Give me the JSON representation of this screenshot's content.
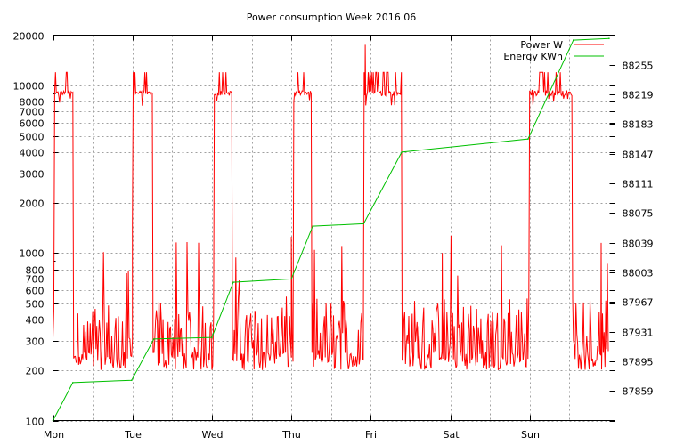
{
  "chart_data": {
    "type": "line",
    "title": "Power consumption Week 2016 06",
    "xlabel": "",
    "ylabel": "",
    "x_categories": [
      "Mon",
      "Tue",
      "Wed",
      "Thu",
      "Fri",
      "Sat",
      "Sun"
    ],
    "x_range_days": [
      0,
      7
    ],
    "y_left": {
      "scale": "log",
      "range": [
        100,
        20000
      ],
      "ticks": [
        100,
        200,
        300,
        400,
        500,
        600,
        700,
        800,
        1000,
        2000,
        3000,
        4000,
        5000,
        6000,
        7000,
        8000,
        10000,
        20000
      ]
    },
    "y_right": {
      "scale": "linear",
      "range": [
        87823,
        88291
      ],
      "ticks": [
        87859,
        87895,
        87931,
        87967,
        88003,
        88039,
        88075,
        88111,
        88147,
        88183,
        88219,
        88255
      ]
    },
    "grid": true,
    "legend_position": "top-right",
    "colors": {
      "power": "#ff0000",
      "energy": "#00c000"
    },
    "series": [
      {
        "name": "Power W",
        "axis": "left",
        "high_periods": [
          {
            "start": 0.02,
            "end": 0.25,
            "level": 9000
          },
          {
            "start": 1.0,
            "end": 1.26,
            "level": 9000
          },
          {
            "start": 2.03,
            "end": 2.26,
            "level": 9000
          },
          {
            "start": 3.03,
            "end": 3.26,
            "level": 9000
          },
          {
            "start": 3.91,
            "end": 4.39,
            "level": 9000
          },
          {
            "start": 5.99,
            "end": 6.54,
            "level": 9000
          }
        ],
        "base_range": [
          200,
          500
        ],
        "max_spike": 17500
      },
      {
        "name": "Energy KWh",
        "axis": "right",
        "x": [
          0.0,
          0.25,
          0.99,
          1.27,
          2.0,
          2.27,
          3.0,
          3.27,
          3.91,
          4.39,
          5.98,
          6.55,
          7.0
        ],
        "values": [
          87823,
          87869,
          87872,
          87922,
          87924,
          87991,
          87995,
          88059,
          88062,
          88149,
          88165,
          88285,
          88287
        ]
      }
    ]
  }
}
